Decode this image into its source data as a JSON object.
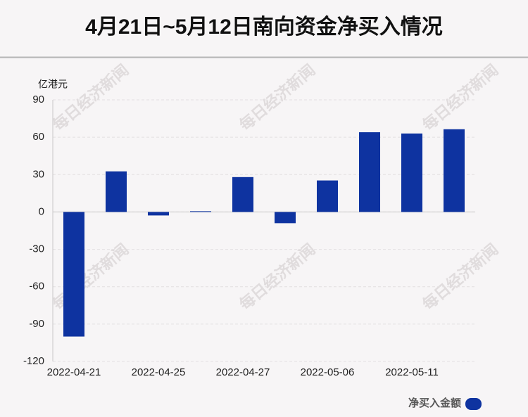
{
  "chart_data": {
    "type": "bar",
    "title": "4月21日~5月12日南向资金净买入情况",
    "y_label": "亿港元",
    "categories": [
      "2022-04-21",
      null,
      "2022-04-25",
      null,
      "2022-04-27",
      null,
      "2022-05-06",
      null,
      "2022-05-11",
      null
    ],
    "series": [
      {
        "name": "净买入金额",
        "color": "#0e33a0",
        "values": [
          -100,
          32.6,
          -2.8,
          0.6,
          28,
          -9,
          25.3,
          64,
          63,
          66.4
        ]
      }
    ],
    "ylim": [
      -120,
      90
    ],
    "yticks": [
      -120,
      -90,
      -60,
      -30,
      0,
      30,
      60,
      90
    ],
    "grid": true,
    "watermark": "每日经济新闻"
  }
}
